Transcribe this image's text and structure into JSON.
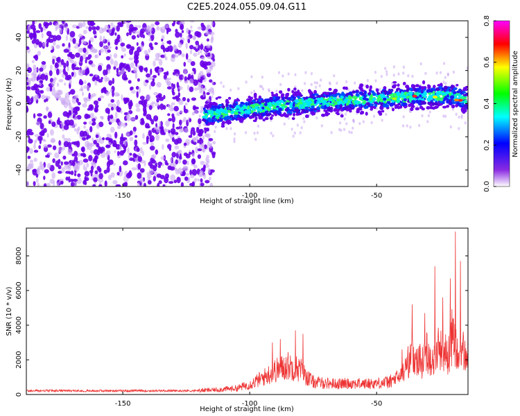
{
  "title": "C2E5.2024.055.09.04.G11",
  "colors": {
    "waterfall_dark": "#6a00e8",
    "waterfall_light": "#c9a6f2",
    "snr_line": "#ee3333",
    "axis": "#000000"
  },
  "chart_data": [
    {
      "type": "heatmap",
      "xlabel": "Height of straight line (km)",
      "ylabel": "Frequency (Hz)",
      "xlim": [
        -188,
        -14
      ],
      "ylim": [
        -50,
        50
      ],
      "x_ticks": [
        -150,
        -100,
        -50
      ],
      "y_ticks": [
        -40,
        -20,
        0,
        20,
        40
      ],
      "ridge_frequency": {
        "x": [
          -122,
          -100,
          -80,
          -60,
          -40,
          -20,
          -14
        ],
        "y": [
          -8,
          -3,
          0,
          2,
          4,
          5,
          2
        ]
      },
      "noise_region_end_x": -120,
      "colorbar": {
        "label": "Normalized spectral amplitude",
        "range": [
          0.0,
          0.8
        ],
        "ticks": [
          "0.0",
          "0.2",
          "0.4",
          "0.6",
          "0.8"
        ],
        "colors": [
          "#ffffff",
          "#8a2be2",
          "#0000ff",
          "#00ffff",
          "#00ff00",
          "#ffff00",
          "#ff0000",
          "#ff00ff"
        ]
      }
    },
    {
      "type": "line",
      "xlabel": "Height of straight line (km)",
      "ylabel": "SNR (10 * v/v)",
      "xlim": [
        -188,
        -14
      ],
      "ylim": [
        0,
        9600
      ],
      "x_ticks": [
        -150,
        -100,
        -50
      ],
      "y_ticks": [
        0,
        2000,
        4000,
        6000,
        8000
      ],
      "envelope": {
        "x": [
          -188,
          -150,
          -125,
          -115,
          -105,
          -100,
          -95,
          -90,
          -85,
          -80,
          -78,
          -75,
          -70,
          -65,
          -60,
          -55,
          -50,
          -45,
          -40,
          -38,
          -35,
          -32,
          -30,
          -28,
          -25,
          -22,
          -20,
          -18,
          -16,
          -14
        ],
        "y": [
          250,
          250,
          300,
          350,
          500,
          800,
          1300,
          1900,
          2300,
          2000,
          1500,
          1000,
          900,
          850,
          900,
          850,
          900,
          1000,
          1500,
          2500,
          3200,
          2500,
          3500,
          2500,
          4000,
          3000,
          4800,
          2800,
          3500,
          2500
        ]
      },
      "peaks": [
        {
          "x": -91,
          "y": 3000
        },
        {
          "x": -88,
          "y": 3200
        },
        {
          "x": -82,
          "y": 3700
        },
        {
          "x": -79,
          "y": 3500
        },
        {
          "x": -40,
          "y": 2600
        },
        {
          "x": -36,
          "y": 5200
        },
        {
          "x": -31,
          "y": 4700
        },
        {
          "x": -27,
          "y": 7400
        },
        {
          "x": -24,
          "y": 5600
        },
        {
          "x": -21,
          "y": 6700
        },
        {
          "x": -19,
          "y": 9400
        },
        {
          "x": -17,
          "y": 7700
        },
        {
          "x": -14,
          "y": 4900
        }
      ]
    }
  ]
}
